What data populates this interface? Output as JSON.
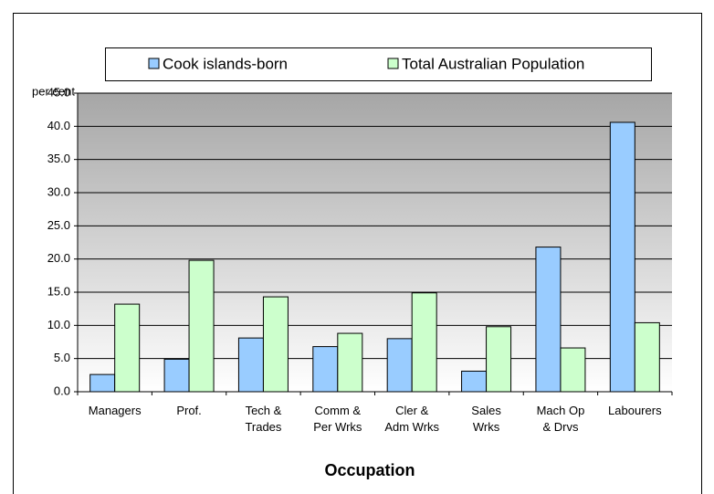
{
  "chart_data": {
    "type": "bar",
    "axis_title": "per cent",
    "x_title": "Occupation",
    "categories": [
      "Managers",
      "Prof.",
      "Tech &\nTrades",
      "Comm &\nPer Wrks",
      "Cler &\nAdm Wrks",
      "Sales\nWrks",
      "Mach Op\n& Drvs",
      "Labourers"
    ],
    "series": [
      {
        "name": "Cook islands-born",
        "color": "#99ccff",
        "values": [
          2.6,
          4.9,
          8.1,
          6.8,
          8.0,
          3.1,
          21.8,
          40.6
        ]
      },
      {
        "name": "Total Australian Population",
        "color": "#ccffcc",
        "values": [
          13.2,
          19.8,
          14.3,
          8.8,
          14.9,
          9.8,
          6.6,
          10.4
        ]
      }
    ],
    "ylim": [
      0,
      45
    ],
    "yticks": [
      {
        "value": 0,
        "label": "0.0"
      },
      {
        "value": 5,
        "label": "5.0"
      },
      {
        "value": 10,
        "label": "10.0"
      },
      {
        "value": 15,
        "label": "15.0"
      },
      {
        "value": 20,
        "label": "20.0"
      },
      {
        "value": 25,
        "label": "25.0"
      },
      {
        "value": 30,
        "label": "30.0"
      },
      {
        "value": 35,
        "label": "35.0"
      },
      {
        "value": 40,
        "label": "40.0"
      },
      {
        "value": 45,
        "label": "45.0"
      }
    ],
    "grid": true
  }
}
